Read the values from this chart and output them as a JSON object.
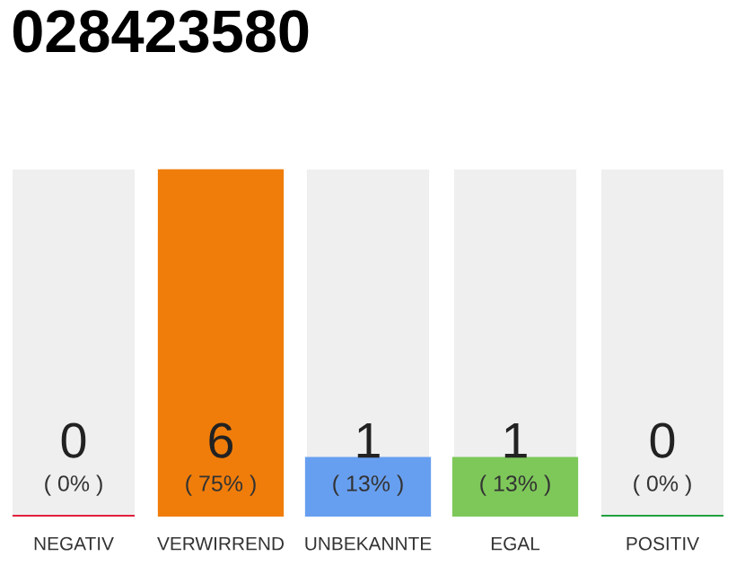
{
  "chart_data": {
    "type": "bar",
    "title": "028423580",
    "categories": [
      "NEGATIV",
      "VERWIRREND",
      "UNBEKANNTE",
      "EGAL",
      "POSITIV"
    ],
    "values": [
      0,
      6,
      1,
      1,
      0
    ],
    "colors": [
      "#e0203c",
      "#f07d0a",
      "#679ff0",
      "#7ec85a",
      "#22a040"
    ],
    "value_labels": [
      "0\n( 0% )",
      "6\n( 75% )",
      "1\n( 13% )",
      "1\n( 13% )",
      "0\n( 0% )"
    ],
    "grid": false,
    "legend": false
  }
}
